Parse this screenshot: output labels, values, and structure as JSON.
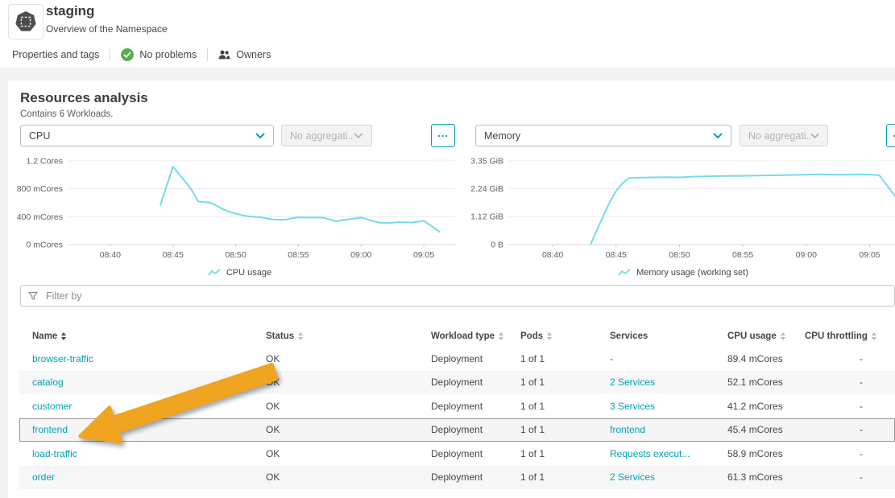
{
  "header": {
    "title": "staging",
    "subtitle": "Overview of the Namespace"
  },
  "toolbar": {
    "properties": "Properties and tags",
    "no_problems": "No problems",
    "owners": "Owners"
  },
  "resources": {
    "title": "Resources analysis",
    "subtitle": "Contains 6 Workloads.",
    "metric_cpu": "CPU",
    "metric_memory": "Memory",
    "aggregation": "No aggregati...",
    "more": "..."
  },
  "filter": {
    "placeholder": "Filter by"
  },
  "table": {
    "columns": [
      {
        "label": "Name",
        "sortable": true,
        "active": true
      },
      {
        "label": "Status",
        "sortable": true,
        "active": false
      },
      {
        "label": "Workload type",
        "sortable": true,
        "active": false
      },
      {
        "label": "Pods",
        "sortable": true,
        "active": false
      },
      {
        "label": "Services",
        "sortable": false,
        "active": false
      },
      {
        "label": "CPU usage",
        "sortable": true,
        "active": false
      },
      {
        "label": "CPU throttling",
        "sortable": true,
        "active": false
      }
    ],
    "rows": [
      {
        "name": "browser-traffic",
        "status": "OK",
        "type": "Deployment",
        "pods": "1 of 1",
        "services": "-",
        "services_link": false,
        "cpu": "89.4 mCores",
        "throttling": "-",
        "highlight": false
      },
      {
        "name": "catalog",
        "status": "OK",
        "type": "Deployment",
        "pods": "1 of 1",
        "services": "2 Services",
        "services_link": true,
        "cpu": "52.1 mCores",
        "throttling": "-",
        "highlight": false
      },
      {
        "name": "customer",
        "status": "OK",
        "type": "Deployment",
        "pods": "1 of 1",
        "services": "3 Services",
        "services_link": true,
        "cpu": "41.2 mCores",
        "throttling": "-",
        "highlight": false
      },
      {
        "name": "frontend",
        "status": "OK",
        "type": "Deployment",
        "pods": "1 of 1",
        "services": "frontend",
        "services_link": true,
        "cpu": "45.4 mCores",
        "throttling": "-",
        "highlight": true
      },
      {
        "name": "load-traffic",
        "status": "OK",
        "type": "Deployment",
        "pods": "1 of 1",
        "services": "Requests execut...",
        "services_link": true,
        "cpu": "58.9 mCores",
        "throttling": "-",
        "highlight": false
      },
      {
        "name": "order",
        "status": "OK",
        "type": "Deployment",
        "pods": "1 of 1",
        "services": "2 Services",
        "services_link": true,
        "cpu": "61.3 mCores",
        "throttling": "-",
        "highlight": false
      }
    ]
  },
  "colors": {
    "accent": "#00a1b2",
    "link": "#00a1b2",
    "chart_line": "#74dbe8",
    "ok_green": "#55b04c",
    "arrow": "#f0a41f"
  },
  "chart_data": [
    {
      "type": "line",
      "title": "CPU",
      "legend": "CPU usage",
      "unit": "mCores",
      "x_ticks": [
        "08:40",
        "08:45",
        "08:50",
        "08:55",
        "09:00",
        "09:05"
      ],
      "x_domain": [
        "08:36:40",
        "09:07:30"
      ],
      "y_max": 1200,
      "y_ticks": [
        {
          "v": 0,
          "label": "0 mCores"
        },
        {
          "v": 400,
          "label": "400 mCores"
        },
        {
          "v": 800,
          "label": "800 mCores"
        },
        {
          "v": 1200,
          "label": "1.2 Cores"
        }
      ],
      "series": [
        {
          "name": "CPU usage",
          "color": "#74dbe8",
          "points": [
            [
              "08:44:00",
              570
            ],
            [
              "08:45:00",
              1120
            ],
            [
              "08:45:30",
              1005
            ],
            [
              "08:46:00",
              900
            ],
            [
              "08:46:30",
              780
            ],
            [
              "08:47:00",
              620
            ],
            [
              "08:48:00",
              600
            ],
            [
              "08:48:30",
              555
            ],
            [
              "08:49:00",
              505
            ],
            [
              "08:49:30",
              470
            ],
            [
              "08:50:00",
              445
            ],
            [
              "08:50:30",
              420
            ],
            [
              "08:51:00",
              405
            ],
            [
              "08:52:00",
              392
            ],
            [
              "08:52:30",
              375
            ],
            [
              "08:53:00",
              360
            ],
            [
              "08:53:30",
              355
            ],
            [
              "08:54:00",
              358
            ],
            [
              "08:54:30",
              378
            ],
            [
              "08:55:00",
              392
            ],
            [
              "08:55:30",
              388
            ],
            [
              "08:56:30",
              388
            ],
            [
              "08:57:00",
              385
            ],
            [
              "08:57:30",
              360
            ],
            [
              "08:58:00",
              335
            ],
            [
              "08:58:30",
              350
            ],
            [
              "08:59:00",
              362
            ],
            [
              "08:59:30",
              375
            ],
            [
              "09:00:00",
              388
            ],
            [
              "09:00:30",
              362
            ],
            [
              "09:01:00",
              332
            ],
            [
              "09:01:30",
              315
            ],
            [
              "09:02:00",
              308
            ],
            [
              "09:02:30",
              315
            ],
            [
              "09:03:00",
              322
            ],
            [
              "09:03:30",
              318
            ],
            [
              "09:04:00",
              316
            ],
            [
              "09:04:30",
              326
            ],
            [
              "09:05:00",
              342
            ],
            [
              "09:05:30",
              280
            ],
            [
              "09:06:15",
              185
            ]
          ]
        }
      ]
    },
    {
      "type": "line",
      "title": "Memory",
      "legend": "Memory usage (working set)",
      "unit": "GiB",
      "x_ticks": [
        "08:40",
        "08:45",
        "08:50",
        "08:55",
        "09:00",
        "09:05"
      ],
      "x_domain": [
        "08:36:30",
        "09:07:00"
      ],
      "y_max": 3.35,
      "y_ticks": [
        {
          "v": 0,
          "label": "0 B"
        },
        {
          "v": 1.12,
          "label": "1.12 GiB"
        },
        {
          "v": 2.24,
          "label": "2.24 GiB"
        },
        {
          "v": 3.35,
          "label": "3.35 GiB"
        }
      ],
      "series": [
        {
          "name": "Memory usage (working set)",
          "color": "#74dbe8",
          "points": [
            [
              "08:43:00",
              0.02
            ],
            [
              "08:43:30",
              0.6
            ],
            [
              "08:44:00",
              1.15
            ],
            [
              "08:44:30",
              1.7
            ],
            [
              "08:45:00",
              2.15
            ],
            [
              "08:45:30",
              2.45
            ],
            [
              "08:46:00",
              2.66
            ],
            [
              "08:47:00",
              2.68
            ],
            [
              "08:48:00",
              2.69
            ],
            [
              "08:49:00",
              2.7
            ],
            [
              "08:50:00",
              2.69
            ],
            [
              "08:51:00",
              2.72
            ],
            [
              "08:52:00",
              2.73
            ],
            [
              "08:53:00",
              2.74
            ],
            [
              "08:54:00",
              2.75
            ],
            [
              "08:55:00",
              2.75
            ],
            [
              "08:56:00",
              2.76
            ],
            [
              "08:57:00",
              2.77
            ],
            [
              "08:58:00",
              2.78
            ],
            [
              "08:59:00",
              2.79
            ],
            [
              "09:00:00",
              2.8
            ],
            [
              "09:01:00",
              2.81
            ],
            [
              "09:02:00",
              2.8
            ],
            [
              "09:03:00",
              2.8
            ],
            [
              "09:04:00",
              2.81
            ],
            [
              "09:05:00",
              2.8
            ],
            [
              "09:05:45",
              2.78
            ],
            [
              "09:07:00",
              1.95
            ]
          ]
        }
      ]
    }
  ]
}
